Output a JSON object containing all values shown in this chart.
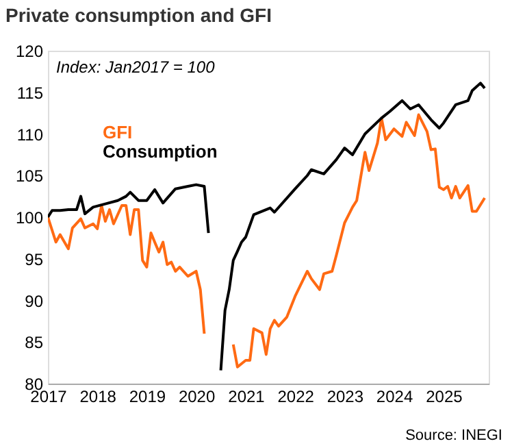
{
  "chart_data": {
    "type": "line",
    "title": "Private consumption and GFI",
    "annotations": [
      "Index: Jan2017 = 100",
      "Source: INEGI"
    ],
    "xlim": [
      "2017-01",
      "2025-12"
    ],
    "xticks": [
      "2017",
      "2018",
      "2019",
      "2020",
      "2021",
      "2022",
      "2023",
      "2024",
      "2025"
    ],
    "ylim": [
      80,
      120
    ],
    "yticks": [
      80,
      85,
      90,
      95,
      100,
      105,
      110,
      115,
      120
    ],
    "grid": false,
    "line_style": "solid",
    "marker": "none",
    "series": [
      {
        "name": "GFI",
        "color": "#ff6a13",
        "x": [
          "2017-01",
          "2017-03",
          "2017-04",
          "2017-06",
          "2017-07",
          "2017-09",
          "2017-10",
          "2017-12",
          "2018-01",
          "2018-02",
          "2018-03",
          "2018-04",
          "2018-05",
          "2018-07",
          "2018-08",
          "2018-09",
          "2018-10",
          "2018-11",
          "2018-12",
          "2019-01",
          "2019-02",
          "2019-03",
          "2019-04",
          "2019-05",
          "2019-06",
          "2019-07",
          "2019-08",
          "2019-09",
          "2019-11",
          "2020-01",
          "2020-02",
          "2020-03",
          "2020-04",
          "2020-09",
          "2020-10",
          "2020-11",
          "2021-01",
          "2021-02",
          "2021-03",
          "2021-05",
          "2021-06",
          "2021-07",
          "2021-08",
          "2021-09",
          "2021-11",
          "2022-01",
          "2022-04",
          "2022-05",
          "2022-07",
          "2022-08",
          "2022-10",
          "2022-11",
          "2023-01",
          "2023-03",
          "2023-04",
          "2023-06",
          "2023-07",
          "2023-09",
          "2023-10",
          "2023-11",
          "2024-01",
          "2024-03",
          "2024-04",
          "2024-06",
          "2024-07",
          "2024-09",
          "2024-10",
          "2024-11",
          "2024-12",
          "2025-01",
          "2025-02",
          "2025-03",
          "2025-04",
          "2025-05",
          "2025-07",
          "2025-08",
          "2025-09",
          "2025-11"
        ],
        "values": [
          100,
          97,
          97.9,
          96.2,
          98.7,
          99.8,
          98.7,
          99.2,
          98.6,
          101.4,
          99.5,
          100.9,
          99.2,
          101.4,
          101.4,
          97.9,
          100.9,
          100.9,
          94.8,
          94,
          98.1,
          97,
          95.8,
          97,
          94.3,
          94.6,
          93.5,
          94,
          92.9,
          93.5,
          91.3,
          86,
          null,
          null,
          84.7,
          82,
          82.8,
          82.8,
          86.6,
          86.1,
          83.5,
          86.6,
          87.6,
          86.9,
          88,
          90.5,
          93.5,
          92.6,
          91.3,
          93.2,
          93.5,
          95.4,
          99.3,
          101.2,
          102,
          107.8,
          105.6,
          108.9,
          111.9,
          109.3,
          110.6,
          109.7,
          111.4,
          109.8,
          112.3,
          110.3,
          108.1,
          108.2,
          103.6,
          103.3,
          103.7,
          102.3,
          103.7,
          102.3,
          103.8,
          100.7,
          100.7,
          102.3
        ]
      },
      {
        "name": "Consumption",
        "color": "#000000",
        "x": [
          "2017-01",
          "2017-02",
          "2017-04",
          "2017-06",
          "2017-08",
          "2017-09",
          "2017-10",
          "2017-12",
          "2018-03",
          "2018-06",
          "2018-08",
          "2018-09",
          "2018-11",
          "2019-01",
          "2019-03",
          "2019-05",
          "2019-08",
          "2019-11",
          "2020-01",
          "2020-03",
          "2020-04",
          "2020-05",
          "2020-06",
          "2020-07",
          "2020-08",
          "2020-09",
          "2020-10",
          "2020-11",
          "2020-12",
          "2021-01",
          "2021-03",
          "2021-07",
          "2021-08",
          "2022-01",
          "2022-04",
          "2022-05",
          "2022-08",
          "2022-11",
          "2023-01",
          "2023-03",
          "2023-06",
          "2023-10",
          "2023-12",
          "2024-03",
          "2024-05",
          "2024-07",
          "2024-10",
          "2024-12",
          "2025-01",
          "2025-04",
          "2025-07",
          "2025-08",
          "2025-10",
          "2025-11"
        ],
        "values": [
          100,
          100.8,
          100.8,
          100.9,
          100.9,
          102.5,
          100.4,
          101.2,
          101.6,
          102,
          102.5,
          103,
          102,
          102,
          103.3,
          101.7,
          103.4,
          103.7,
          103.9,
          103.7,
          98.1,
          null,
          null,
          81.6,
          88.8,
          91.3,
          94.8,
          95.9,
          97,
          97.6,
          100.3,
          101.1,
          100.6,
          103.4,
          105,
          105.7,
          105.2,
          106.9,
          108.3,
          107.5,
          110,
          111.9,
          112.7,
          114,
          113,
          113.5,
          111.7,
          110.7,
          111.3,
          113.5,
          114,
          115.2,
          116.1,
          115.5
        ]
      }
    ]
  }
}
